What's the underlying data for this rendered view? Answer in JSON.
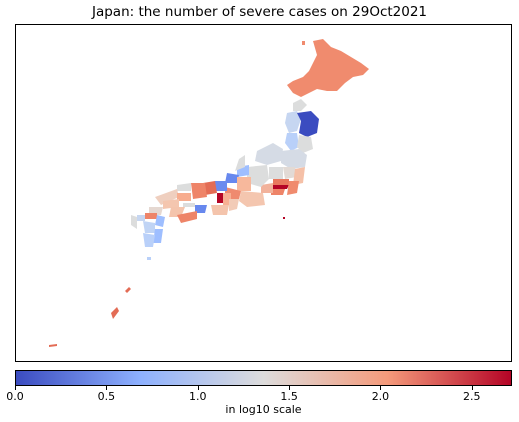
{
  "title": "Japan: the number of severe cases on 29Oct2021",
  "colorbar": {
    "label": "in log10 scale",
    "range": [
      0.0,
      2.72
    ],
    "ticks": [
      {
        "value": 0.0,
        "label": "0.0"
      },
      {
        "value": 0.5,
        "label": "0.5"
      },
      {
        "value": 1.0,
        "label": "1.0"
      },
      {
        "value": 1.5,
        "label": "1.5"
      },
      {
        "value": 2.0,
        "label": "2.0"
      },
      {
        "value": 2.5,
        "label": "2.5"
      }
    ],
    "colors": [
      "#3b4cc0",
      "#8db0fe",
      "#dddcdc",
      "#f49a7b",
      "#b40426"
    ]
  }
}
